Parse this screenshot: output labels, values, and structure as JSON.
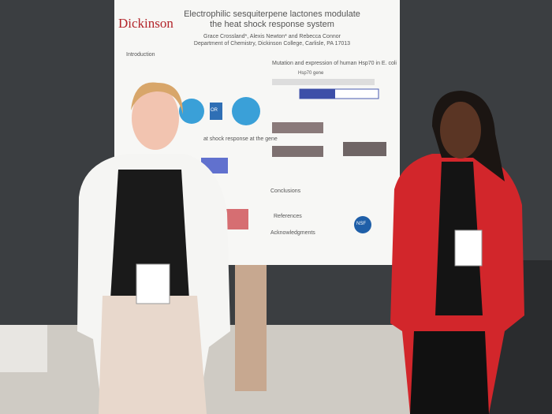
{
  "poster": {
    "logo": "Dickinson",
    "title": "Electrophilic sesquiterpene lactones modulate the heat shock response system",
    "authors": "Grace Crossland*, Alexis Newton* and Rebecca Connor",
    "affiliation": "Department of Chemistry, Dickinson College, Carlisle, PA 17013",
    "sections": [
      "Introduction",
      "Mutation and expression of human Hsp70 in E. coli",
      "at shock response at the gene",
      "Conclusions",
      "References",
      "Acknowledgments"
    ],
    "gene_label": "Hsp70 gene",
    "or_label": "OR",
    "sponsor": "NSF"
  }
}
